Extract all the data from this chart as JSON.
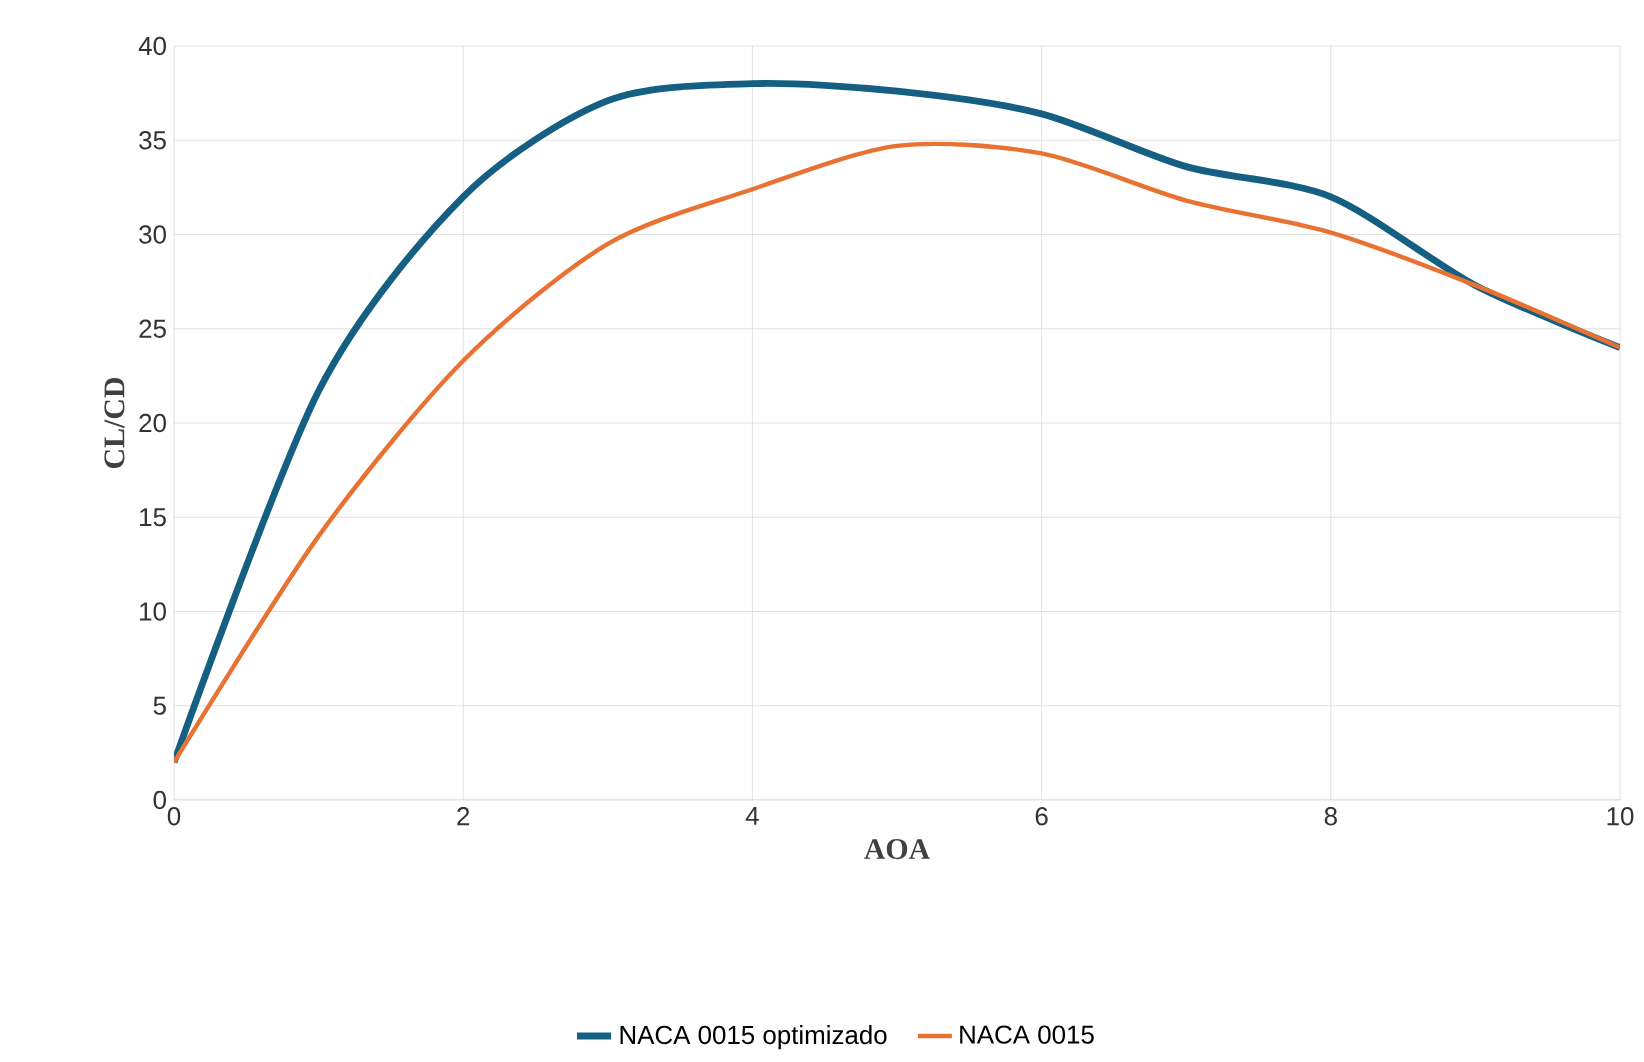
{
  "chart_data": {
    "type": "line",
    "xlabel": "AOA",
    "ylabel": "CL/CD",
    "x": [
      0,
      1,
      2,
      3,
      4,
      5,
      6,
      7,
      8,
      9,
      10
    ],
    "series": [
      {
        "name": "NACA 0015 optimizado",
        "color": "#156082",
        "values": [
          2,
          21.7,
          32.0,
          37.1,
          38.0,
          37.6,
          36.4,
          33.6,
          32.0,
          27.3,
          24.0
        ]
      },
      {
        "name": "NACA 0015",
        "color": "#e97132",
        "values": [
          2,
          14.0,
          23.3,
          29.5,
          32.4,
          34.7,
          34.3,
          31.8,
          30.1,
          27.3,
          24.0
        ]
      }
    ],
    "xlim": [
      0,
      10
    ],
    "ylim": [
      0,
      40
    ],
    "xticks": [
      0,
      2,
      4,
      6,
      8,
      10
    ],
    "yticks": [
      0,
      5,
      10,
      15,
      20,
      25,
      30,
      35,
      40
    ],
    "grid": true,
    "legend": "bottom"
  }
}
